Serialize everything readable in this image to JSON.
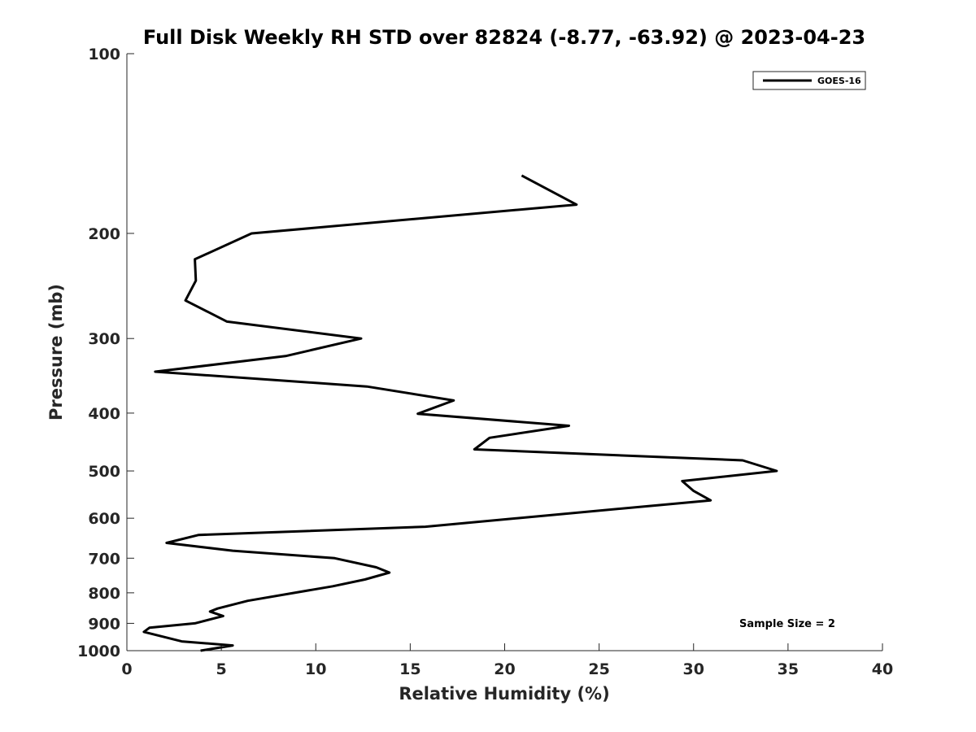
{
  "chart_data": {
    "type": "line",
    "title": "Full Disk Weekly RH STD over 82824 (-8.77, -63.92) @ 2023-04-23",
    "xlabel": "Relative Humidity (%)",
    "ylabel": "Pressure (mb)",
    "xlim": [
      0,
      40
    ],
    "ylim": [
      100,
      1000
    ],
    "y_scale": "log",
    "y_reversed": true,
    "grid": false,
    "legend_position": "top-right",
    "x_ticks": [
      "0",
      "5",
      "10",
      "15",
      "20",
      "25",
      "30",
      "35",
      "40"
    ],
    "y_ticks": [
      "100",
      "200",
      "300",
      "400",
      "500",
      "600",
      "700",
      "800",
      "900",
      "1000"
    ],
    "annotation": "Sample Size = 2",
    "series": [
      {
        "name": "GOES-16",
        "color": "#000000",
        "points": [
          [
            20.9,
            160
          ],
          [
            23.8,
            179
          ],
          [
            6.6,
            200
          ],
          [
            3.6,
            221
          ],
          [
            3.65,
            240
          ],
          [
            3.1,
            259
          ],
          [
            5.3,
            281
          ],
          [
            12.4,
            300
          ],
          [
            8.4,
            321
          ],
          [
            1.5,
            341
          ],
          [
            12.7,
            361
          ],
          [
            17.3,
            381
          ],
          [
            15.4,
            401
          ],
          [
            23.4,
            420
          ],
          [
            19.2,
            440
          ],
          [
            18.4,
            460
          ],
          [
            32.6,
            480
          ],
          [
            34.4,
            500
          ],
          [
            29.4,
            520
          ],
          [
            30.0,
            540
          ],
          [
            30.9,
            560
          ],
          [
            15.8,
            620
          ],
          [
            3.8,
            640
          ],
          [
            2.1,
            660
          ],
          [
            5.6,
            680
          ],
          [
            11.0,
            700
          ],
          [
            13.2,
            725
          ],
          [
            13.9,
            740
          ],
          [
            12.6,
            760
          ],
          [
            10.9,
            780
          ],
          [
            6.4,
            825
          ],
          [
            4.8,
            850
          ],
          [
            4.4,
            860
          ],
          [
            5.1,
            875
          ],
          [
            3.6,
            900
          ],
          [
            1.2,
            915
          ],
          [
            0.9,
            930
          ],
          [
            2.9,
            965
          ],
          [
            5.6,
            980
          ],
          [
            3.9,
            1000
          ]
        ]
      }
    ]
  }
}
